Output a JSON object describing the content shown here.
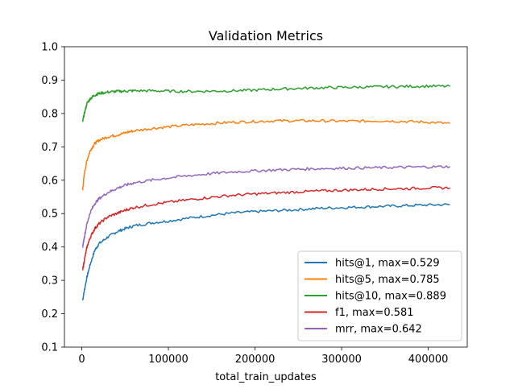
{
  "chart_data": {
    "type": "line",
    "title": "Validation Metrics",
    "xlabel": "total_train_updates",
    "ylabel": "",
    "xlim": [
      -20000,
      445000
    ],
    "ylim": [
      0.1,
      1.0
    ],
    "xticks": [
      0,
      100000,
      200000,
      300000,
      400000
    ],
    "xtick_labels": [
      "0",
      "100000",
      "200000",
      "300000",
      "400000"
    ],
    "yticks": [
      0.1,
      0.2,
      0.3,
      0.4,
      0.5,
      0.6,
      0.7,
      0.8,
      0.9,
      1.0
    ],
    "ytick_labels": [
      "0.1",
      "0.2",
      "0.3",
      "0.4",
      "0.5",
      "0.6",
      "0.7",
      "0.8",
      "0.9",
      "1.0"
    ],
    "grid": false,
    "legend_position": "lower-right",
    "series": [
      {
        "name": "hits@1, max=0.529",
        "color": "#1f77b4",
        "x": [
          1000,
          3000,
          6000,
          10000,
          15000,
          20000,
          30000,
          40000,
          50000,
          60000,
          80000,
          100000,
          125000,
          150000,
          175000,
          200000,
          225000,
          250000,
          275000,
          300000,
          325000,
          350000,
          375000,
          400000,
          425000
        ],
        "y": [
          0.24,
          0.27,
          0.31,
          0.35,
          0.39,
          0.41,
          0.43,
          0.445,
          0.455,
          0.463,
          0.472,
          0.478,
          0.487,
          0.495,
          0.502,
          0.506,
          0.509,
          0.512,
          0.516,
          0.518,
          0.52,
          0.522,
          0.524,
          0.526,
          0.527
        ]
      },
      {
        "name": "hits@5, max=0.785",
        "color": "#ff7f0e",
        "x": [
          1000,
          3000,
          6000,
          10000,
          15000,
          20000,
          30000,
          40000,
          50000,
          60000,
          80000,
          100000,
          125000,
          150000,
          175000,
          200000,
          225000,
          250000,
          275000,
          300000,
          325000,
          350000,
          375000,
          400000,
          425000
        ],
        "y": [
          0.57,
          0.62,
          0.66,
          0.69,
          0.71,
          0.72,
          0.73,
          0.735,
          0.742,
          0.748,
          0.755,
          0.76,
          0.766,
          0.77,
          0.774,
          0.776,
          0.778,
          0.778,
          0.778,
          0.777,
          0.777,
          0.778,
          0.776,
          0.774,
          0.77
        ]
      },
      {
        "name": "hits@10, max=0.889",
        "color": "#2ca02c",
        "x": [
          1000,
          3000,
          6000,
          10000,
          15000,
          20000,
          30000,
          40000,
          50000,
          60000,
          80000,
          100000,
          125000,
          150000,
          175000,
          200000,
          225000,
          250000,
          275000,
          300000,
          325000,
          350000,
          375000,
          400000,
          425000
        ],
        "y": [
          0.775,
          0.8,
          0.83,
          0.845,
          0.855,
          0.86,
          0.864,
          0.866,
          0.867,
          0.868,
          0.868,
          0.867,
          0.866,
          0.867,
          0.868,
          0.87,
          0.873,
          0.875,
          0.877,
          0.878,
          0.879,
          0.88,
          0.881,
          0.882,
          0.881
        ]
      },
      {
        "name": "f1, max=0.581",
        "color": "#d62728",
        "x": [
          1000,
          3000,
          6000,
          10000,
          15000,
          20000,
          30000,
          40000,
          50000,
          60000,
          80000,
          100000,
          125000,
          150000,
          175000,
          200000,
          225000,
          250000,
          275000,
          300000,
          325000,
          350000,
          375000,
          400000,
          425000
        ],
        "y": [
          0.33,
          0.36,
          0.4,
          0.43,
          0.455,
          0.47,
          0.49,
          0.5,
          0.51,
          0.518,
          0.527,
          0.534,
          0.542,
          0.549,
          0.555,
          0.559,
          0.562,
          0.565,
          0.568,
          0.57,
          0.572,
          0.574,
          0.575,
          0.577,
          0.577
        ]
      },
      {
        "name": "mrr, max=0.642",
        "color": "#9467bd",
        "x": [
          1000,
          3000,
          6000,
          10000,
          15000,
          20000,
          30000,
          40000,
          50000,
          60000,
          80000,
          100000,
          125000,
          150000,
          175000,
          200000,
          225000,
          250000,
          275000,
          300000,
          325000,
          350000,
          375000,
          400000,
          425000
        ],
        "y": [
          0.4,
          0.43,
          0.47,
          0.505,
          0.53,
          0.545,
          0.563,
          0.575,
          0.585,
          0.592,
          0.6,
          0.607,
          0.614,
          0.62,
          0.625,
          0.628,
          0.631,
          0.633,
          0.635,
          0.636,
          0.637,
          0.638,
          0.639,
          0.64,
          0.641
        ]
      }
    ]
  }
}
